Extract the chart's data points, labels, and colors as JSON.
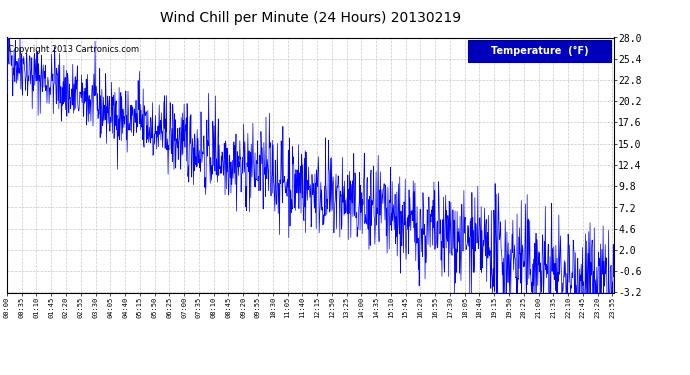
{
  "title": "Wind Chill per Minute (24 Hours) 20130219",
  "copyright_text": "Copyright 2013 Cartronics.com",
  "legend_label": "Temperature  (°F)",
  "line_color": "#0000FF",
  "background_color": "#FFFFFF",
  "plot_bg_color": "#FFFFFF",
  "grid_color": "#BBBBBB",
  "legend_bg": "#0000BB",
  "legend_text_color": "#FFFFFF",
  "yticks": [
    -3.2,
    -0.6,
    2.0,
    4.6,
    7.2,
    9.8,
    12.4,
    15.0,
    17.6,
    20.2,
    22.8,
    25.4,
    28.0
  ],
  "ymin": -3.2,
  "ymax": 28.0,
  "total_minutes": 1440,
  "seed": 42
}
